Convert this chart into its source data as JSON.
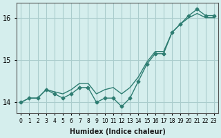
{
  "xlabel": "Humidex (Indice chaleur)",
  "ylabel": "",
  "background_color": "#d5eeed",
  "grid_color": "#aacccc",
  "line_color": "#2e7d72",
  "x_values": [
    0,
    1,
    2,
    3,
    4,
    5,
    6,
    7,
    8,
    9,
    10,
    11,
    12,
    13,
    14,
    15,
    16,
    17,
    18,
    19,
    20,
    21,
    22,
    23
  ],
  "y_noisy": [
    14.0,
    14.1,
    14.1,
    14.3,
    14.2,
    14.1,
    14.2,
    14.35,
    14.35,
    14.0,
    14.1,
    14.1,
    13.9,
    14.1,
    14.5,
    14.9,
    15.15,
    15.15,
    15.65,
    15.85,
    16.05,
    16.2,
    16.05,
    16.05
  ],
  "y_smooth": [
    14.0,
    14.1,
    14.1,
    14.3,
    14.25,
    14.2,
    14.3,
    14.45,
    14.45,
    14.2,
    14.3,
    14.35,
    14.2,
    14.35,
    14.6,
    14.95,
    15.2,
    15.2,
    15.65,
    15.85,
    16.0,
    16.1,
    16.0,
    16.0
  ],
  "ylim": [
    13.75,
    16.35
  ],
  "xlim": [
    -0.5,
    23.5
  ],
  "yticks": [
    14,
    15,
    16
  ],
  "xtick_labels": [
    "0",
    "1",
    "2",
    "3",
    "4",
    "5",
    "6",
    "7",
    "8",
    "9",
    "10",
    "11",
    "12",
    "13",
    "14",
    "15",
    "16",
    "17",
    "18",
    "19",
    "20",
    "21",
    "22",
    "23"
  ]
}
